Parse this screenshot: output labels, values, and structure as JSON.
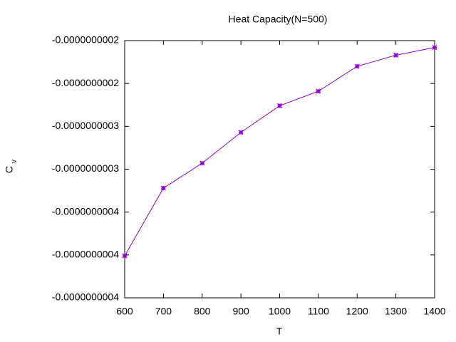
{
  "chart_data": {
    "type": "line",
    "title": "Heat Capacity(N=500)",
    "xlabel": "T",
    "ylabel": "C",
    "ylabel_subscript": "v",
    "x": [
      600,
      700,
      800,
      900,
      1000,
      1100,
      1200,
      1300,
      1400
    ],
    "series": [
      {
        "color": "#9400d3",
        "values": [
          -4.01e-10,
          -3.22e-10,
          -2.93e-10,
          -2.57e-10,
          -2.26e-10,
          -2.09e-10,
          -1.8e-10,
          -1.67e-10,
          -1.58e-10
        ]
      }
    ],
    "xlim": [
      600,
      1400
    ],
    "xticks": [
      600,
      700,
      800,
      900,
      1000,
      1100,
      1200,
      1300,
      1400
    ],
    "ylim": [
      -4.5e-10,
      -1.5e-10
    ],
    "yticks": [
      {
        "value": -4.5e-10,
        "label": "-0.0000000004"
      },
      {
        "value": -4e-10,
        "label": "-0.0000000004"
      },
      {
        "value": -3.5e-10,
        "label": "-0.0000000004"
      },
      {
        "value": -3e-10,
        "label": "-0.0000000003"
      },
      {
        "value": -2.5e-10,
        "label": "-0.0000000003"
      },
      {
        "value": -2e-10,
        "label": "-0.0000000002"
      },
      {
        "value": -1.5e-10,
        "label": "-0.0000000002"
      }
    ],
    "grid": false
  }
}
